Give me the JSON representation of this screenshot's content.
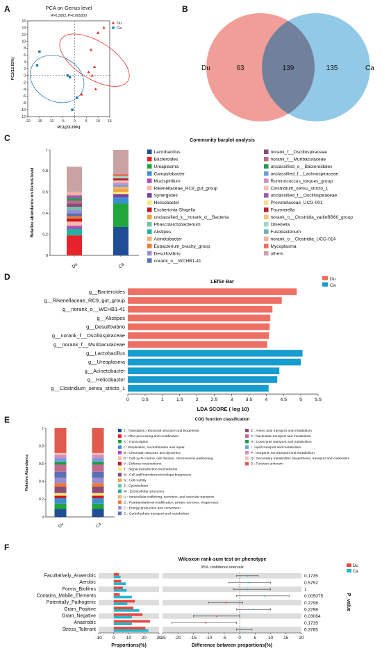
{
  "panels": {
    "A": "A",
    "B": "B",
    "C": "C",
    "D": "D",
    "E": "E",
    "F": "F"
  },
  "chart_data": [
    {
      "panel": "A",
      "type": "scatter",
      "title": "PCA on Genus level",
      "subtitle": "R=0.3093, P=0.005000",
      "xlabel": "PC1(23.29%)",
      "ylabel": "PC2(12.83%)",
      "xlim": [
        -20,
        15
      ],
      "ylim": [
        -12,
        16
      ],
      "xticks": [
        -20,
        -15,
        -10,
        -5,
        0,
        5,
        10,
        15
      ],
      "yticks": [
        -12,
        -10,
        -8,
        -6,
        -4,
        -2,
        0,
        2,
        4,
        6,
        8,
        10,
        12,
        14,
        16
      ],
      "legend_position": "top-right",
      "series": [
        {
          "name": "Du",
          "marker": "triangle",
          "color": "#e8352f",
          "points": [
            [
              12.5,
              14
            ],
            [
              10,
              12.5
            ],
            [
              7,
              7.5
            ],
            [
              8.5,
              2.5
            ],
            [
              6,
              1
            ],
            [
              7.5,
              0
            ],
            [
              3,
              -5.5
            ],
            [
              9,
              -4
            ]
          ]
        },
        {
          "name": "Ca",
          "marker": "square",
          "color": "#1f77b4",
          "points": [
            [
              -15,
              7
            ],
            [
              -16,
              3
            ],
            [
              -3,
              0
            ],
            [
              -2,
              -0.5
            ],
            [
              1,
              -6.5
            ],
            [
              -1,
              -10
            ]
          ]
        }
      ]
    },
    {
      "panel": "B",
      "type": "venn",
      "sets": [
        {
          "name": "Du",
          "only": "63",
          "color": "#ee8c86"
        },
        {
          "name": "Ca",
          "only": "135",
          "color": "#7fc0e2"
        }
      ],
      "overlap": "139"
    },
    {
      "panel": "C",
      "type": "stacked_bar",
      "title": "Community barplot analysis",
      "ylabel": "Relative abundance on Genus level",
      "ylim": [
        0,
        1
      ],
      "yticks": [
        "0",
        "0.2",
        "0.4",
        "0.6",
        "0.8",
        "1"
      ],
      "categories": [
        "Du",
        "Ca"
      ],
      "legend_col1": [
        {
          "name": "Lactobacillus",
          "color": "#1f4e96"
        },
        {
          "name": "Bacteroides",
          "color": "#e8222b"
        },
        {
          "name": "Ureaplasma",
          "color": "#20a63b"
        },
        {
          "name": "Campylobacter",
          "color": "#3b8fd0"
        },
        {
          "name": "Mucispirillum",
          "color": "#b04fbf"
        },
        {
          "name": "Rikenellaceae_RC9_gut_group",
          "color": "#f6b9a6"
        },
        {
          "name": "Synergistes",
          "color": "#7b3fa0"
        },
        {
          "name": "Helicobacter",
          "color": "#f7ea7a"
        },
        {
          "name": "Escherichia-Shigella",
          "color": "#c7181f"
        },
        {
          "name": "unclassified_k__norank_d__Bacteria",
          "color": "#f2a33a"
        },
        {
          "name": "Phascolarctobacterium",
          "color": "#6cc3a8"
        },
        {
          "name": "Alistipes",
          "color": "#1fb3a0"
        },
        {
          "name": "Acinetobacter",
          "color": "#f6b26b"
        },
        {
          "name": "Eubacterium_brachy_group",
          "color": "#f07a2f"
        },
        {
          "name": "Desulfovibrio",
          "color": "#9a8ed0"
        },
        {
          "name": "norank_o__WCHB1-41",
          "color": "#5b6fb3"
        }
      ],
      "legend_col2": [
        {
          "name": "norank_f__Oscillospiraceae",
          "color": "#8a4b7a"
        },
        {
          "name": "norank_f__Muribaculaceae",
          "color": "#c26a8c"
        },
        {
          "name": "unclassified_o__Bacteroidales",
          "color": "#1f9e4a"
        },
        {
          "name": "unclassified_f__Lachnospiraceae",
          "color": "#6f9fd6"
        },
        {
          "name": "Ruminococcus_torques_group",
          "color": "#d18fc6"
        },
        {
          "name": "Clostridium_sensu_stricto_1",
          "color": "#f3c1b8"
        },
        {
          "name": "unclassified_f__Oscillospiraceae",
          "color": "#a05ab0"
        },
        {
          "name": "Prevotellaceae_UCG-001",
          "color": "#f0e090"
        },
        {
          "name": "Fournierella",
          "color": "#b8232c"
        },
        {
          "name": "norank_o__Clostridia_vadinBB60_group",
          "color": "#f5c57a"
        },
        {
          "name": "Olsenella",
          "color": "#9fd6c6"
        },
        {
          "name": "Fusobacterium",
          "color": "#6fb6b0"
        },
        {
          "name": "norank_o__Clostridia_UCG-014",
          "color": "#f4b1a3"
        },
        {
          "name": "Mycoplasma",
          "color": "#e9725a"
        },
        {
          "name": "others",
          "color": "#c9a3a3"
        }
      ],
      "stacks": {
        "Du": [
          {
            "color": "#e8222b",
            "value": 0.19
          },
          {
            "color": "#1fb3a0",
            "value": 0.06
          },
          {
            "color": "#b04fbf",
            "value": 0.03
          },
          {
            "color": "#f6b9a6",
            "value": 0.04
          },
          {
            "color": "#c7181f",
            "value": 0.03
          },
          {
            "color": "#f07a2f",
            "value": 0.02
          },
          {
            "color": "#5b6fb3",
            "value": 0.03
          },
          {
            "color": "#9a8ed0",
            "value": 0.03
          },
          {
            "color": "#6cc3a8",
            "value": 0.03
          },
          {
            "color": "#8a4b7a",
            "value": 0.03
          },
          {
            "color": "#c26a8c",
            "value": 0.03
          },
          {
            "color": "#1f9e4a",
            "value": 0.02
          },
          {
            "color": "#a05ab0",
            "value": 0.03
          },
          {
            "color": "#f4b1a3",
            "value": 0.03
          },
          {
            "color": "#c9a3a3",
            "value": 0.24
          }
        ],
        "Ca": [
          {
            "color": "#1f4e96",
            "value": 0.27
          },
          {
            "color": "#20a63b",
            "value": 0.22
          },
          {
            "color": "#3b8fd0",
            "value": 0.06
          },
          {
            "color": "#7b3fa0",
            "value": 0.03
          },
          {
            "color": "#f7ea7a",
            "value": 0.02
          },
          {
            "color": "#f2a33a",
            "value": 0.03
          },
          {
            "color": "#f6b26b",
            "value": 0.02
          },
          {
            "color": "#6f9fd6",
            "value": 0.02
          },
          {
            "color": "#d18fc6",
            "value": 0.02
          },
          {
            "color": "#f3c1b8",
            "value": 0.02
          },
          {
            "color": "#b8232c",
            "value": 0.02
          },
          {
            "color": "#9fd6c6",
            "value": 0.02
          },
          {
            "color": "#e9725a",
            "value": 0.02
          },
          {
            "color": "#c9a3a3",
            "value": 0.23
          }
        ]
      }
    },
    {
      "panel": "D",
      "type": "bar",
      "title": "LEfSe Bar",
      "xlabel": "LDA SCORE ( log 10)",
      "xlim": [
        0,
        5.5
      ],
      "xticks": [
        "0",
        "0.5",
        "1",
        "1.5",
        "2",
        "2.5",
        "3",
        "3.5",
        "4",
        "4.5",
        "5",
        "5.5"
      ],
      "legend": [
        {
          "name": "Du",
          "color": "#ee6f63"
        },
        {
          "name": "Ca",
          "color": "#169ccf"
        }
      ],
      "bars": [
        {
          "label": "g__Bacteroides",
          "value": 4.88,
          "group": "Du"
        },
        {
          "label": "g__Rikenellaceae_RC9_gut_group",
          "value": 4.45,
          "group": "Du"
        },
        {
          "label": "g__norank_o__WCHB1-41",
          "value": 4.18,
          "group": "Du"
        },
        {
          "label": "g__Alistipes",
          "value": 4.12,
          "group": "Du"
        },
        {
          "label": "g__Desulfovibrio",
          "value": 4.1,
          "group": "Du"
        },
        {
          "label": "g__norank_f__Oscillospiraceae",
          "value": 4.08,
          "group": "Du"
        },
        {
          "label": "g__norank_f__Muribaculaceae",
          "value": 4.03,
          "group": "Du"
        },
        {
          "label": "g__Lactobacillus",
          "value": 5.05,
          "group": "Ca"
        },
        {
          "label": "g__Ureaplasma",
          "value": 5.0,
          "group": "Ca"
        },
        {
          "label": "g__Acinetobacter",
          "value": 4.38,
          "group": "Ca"
        },
        {
          "label": "g__Helicobacter",
          "value": 4.32,
          "group": "Ca"
        },
        {
          "label": "g__Clostridium_sensu_stricto_1",
          "value": 4.07,
          "group": "Ca"
        }
      ]
    },
    {
      "panel": "E",
      "type": "stacked_bar",
      "title": "COG function classification",
      "ylabel": "Relative Abundance",
      "ylim": [
        0,
        1
      ],
      "yticks": [
        "0",
        "0.2",
        "0.4",
        "0.6",
        "0.8",
        "1"
      ],
      "categories": [
        "Du",
        "Ca"
      ],
      "legend_col1": [
        {
          "name": "J : Translation, ribosomal structure and biogenesis",
          "color": "#1f4e96"
        },
        {
          "name": "A : RNA processing and modification",
          "color": "#e8222b"
        },
        {
          "name": "K : Transcription",
          "color": "#20a63b"
        },
        {
          "name": "L : Replication, recombination and repair",
          "color": "#3b8fd0"
        },
        {
          "name": "B : Chromatin structure and dynamics",
          "color": "#b04fbf"
        },
        {
          "name": "D : Cell cycle control, cell division, chromosome partitioning",
          "color": "#f6b9a6"
        },
        {
          "name": "V : Defense mechanisms",
          "color": "#c7181f"
        },
        {
          "name": "T : Signal transduction mechanisms",
          "color": "#f7ea7a"
        },
        {
          "name": "M : Cell wall/membrane/envelope biogenesis",
          "color": "#8a4b7a"
        },
        {
          "name": "N : Cell motility",
          "color": "#f2a33a"
        },
        {
          "name": "Z : Cytoskeleton",
          "color": "#6cc3a8"
        },
        {
          "name": "W : Extracellular structures",
          "color": "#1fb3a0"
        },
        {
          "name": "U : Intracellular trafficking, secretion, and vesicular transport",
          "color": "#f6b26b"
        },
        {
          "name": "O : Posttranslational modification, protein turnover, chaperones",
          "color": "#f07a2f"
        },
        {
          "name": "C : Energy production and conversion",
          "color": "#9a8ed0"
        },
        {
          "name": "G : Carbohydrate transport and metabolism",
          "color": "#5b6fb3"
        }
      ],
      "legend_col2": [
        {
          "name": "E : Amino acid transport and metabolism",
          "color": "#8a4b7a"
        },
        {
          "name": "F : Nucleotide transport and metabolism",
          "color": "#c26a8c"
        },
        {
          "name": "H : Coenzyme transport and metabolism",
          "color": "#1f9e4a"
        },
        {
          "name": "I : Lipid transport and metabolism",
          "color": "#6f9fd6"
        },
        {
          "name": "P : Inorganic ion transport and metabolism",
          "color": "#d18fc6"
        },
        {
          "name": "Q : Secondary metabolites biosynthesis, transport and catabolism",
          "color": "#f3c1b8"
        },
        {
          "name": "S : Function unknown",
          "color": "#e05a4e"
        }
      ],
      "stacks": {
        "Du": [
          {
            "color": "#1f4e96",
            "value": 0.09
          },
          {
            "color": "#20a63b",
            "value": 0.06
          },
          {
            "color": "#3b8fd0",
            "value": 0.06
          },
          {
            "color": "#c7181f",
            "value": 0.03
          },
          {
            "color": "#f7ea7a",
            "value": 0.03
          },
          {
            "color": "#8a4b7a",
            "value": 0.07
          },
          {
            "color": "#f07a2f",
            "value": 0.04
          },
          {
            "color": "#9a8ed0",
            "value": 0.06
          },
          {
            "color": "#5b6fb3",
            "value": 0.07
          },
          {
            "color": "#c26a8c",
            "value": 0.08
          },
          {
            "color": "#1f9e4a",
            "value": 0.03
          },
          {
            "color": "#6f9fd6",
            "value": 0.04
          },
          {
            "color": "#d18fc6",
            "value": 0.04
          },
          {
            "color": "#f3c1b8",
            "value": 0.02
          },
          {
            "color": "#e05a4e",
            "value": 0.28
          }
        ],
        "Ca": [
          {
            "color": "#1f4e96",
            "value": 0.09
          },
          {
            "color": "#20a63b",
            "value": 0.06
          },
          {
            "color": "#3b8fd0",
            "value": 0.06
          },
          {
            "color": "#c7181f",
            "value": 0.03
          },
          {
            "color": "#f7ea7a",
            "value": 0.03
          },
          {
            "color": "#8a4b7a",
            "value": 0.07
          },
          {
            "color": "#f07a2f",
            "value": 0.04
          },
          {
            "color": "#9a8ed0",
            "value": 0.06
          },
          {
            "color": "#5b6fb3",
            "value": 0.07
          },
          {
            "color": "#c26a8c",
            "value": 0.08
          },
          {
            "color": "#1f9e4a",
            "value": 0.03
          },
          {
            "color": "#6f9fd6",
            "value": 0.04
          },
          {
            "color": "#d18fc6",
            "value": 0.04
          },
          {
            "color": "#f3c1b8",
            "value": 0.02
          },
          {
            "color": "#e05a4e",
            "value": 0.28
          }
        ]
      }
    },
    {
      "panel": "F",
      "type": "bar",
      "title": "Wilcoxon rank-sum test on phenotype",
      "subtitle": "95% confidence intervals",
      "xlabel_left": "Proportions(%)",
      "xlabel_right": "Difference between proportions(%)",
      "pvalue_label": "P_value",
      "left_xlim": [
        -10,
        30
      ],
      "left_xticks": [
        "-10",
        "0",
        "10",
        "20",
        "30"
      ],
      "right_xlim": [
        -25,
        20
      ],
      "right_xticks": [
        "-25",
        "-20",
        "-15",
        "-10",
        "-5",
        "0",
        "5",
        "10",
        "15",
        "20"
      ],
      "legend": [
        {
          "name": "Du",
          "color": "#e8453c"
        },
        {
          "name": "Ca",
          "color": "#22b8cf"
        }
      ],
      "rows": [
        {
          "label": "Facultatively_Anaerobic",
          "du": 3.5,
          "ca": 4.5,
          "diff": 2.5,
          "ci": [
            -1,
            6
          ],
          "p": "0.1735"
        },
        {
          "label": "Aerobic",
          "du": 5,
          "ca": 8,
          "diff": 3,
          "ci": [
            -3.5,
            10
          ],
          "p": "0.5752"
        },
        {
          "label": "Forms_Biofilms",
          "du": 6,
          "ca": 8.5,
          "diff": 2.5,
          "ci": [
            -2,
            10
          ],
          "p": "1"
        },
        {
          "label": "Contains_Mobile_Elements",
          "du": 4,
          "ca": 12,
          "diff": 8,
          "ci": [
            -1,
            16
          ],
          "p": "0.005075"
        },
        {
          "label": "Potentially_Pathogenic",
          "du": 14,
          "ca": 9,
          "diff": -4.5,
          "ci": [
            -10,
            1
          ],
          "p": "0.2298"
        },
        {
          "label": "Gram_Positive",
          "du": 13,
          "ca": 17,
          "diff": 4.5,
          "ci": [
            -1,
            10
          ],
          "p": "0.2298"
        },
        {
          "label": "Gram_Negative",
          "du": 19,
          "ca": 12,
          "diff": -7.5,
          "ci": [
            -15,
            0
          ],
          "p": "0.03064"
        },
        {
          "label": "Anaerobic",
          "du": 24,
          "ca": 12,
          "diff": -11,
          "ci": [
            -22,
            -1
          ],
          "p": "0.1735"
        },
        {
          "label": "Stress_Tolerant",
          "du": 21,
          "ca": 23,
          "diff": 1.5,
          "ci": [
            -1,
            4
          ],
          "p": "0.3785"
        }
      ]
    }
  ]
}
